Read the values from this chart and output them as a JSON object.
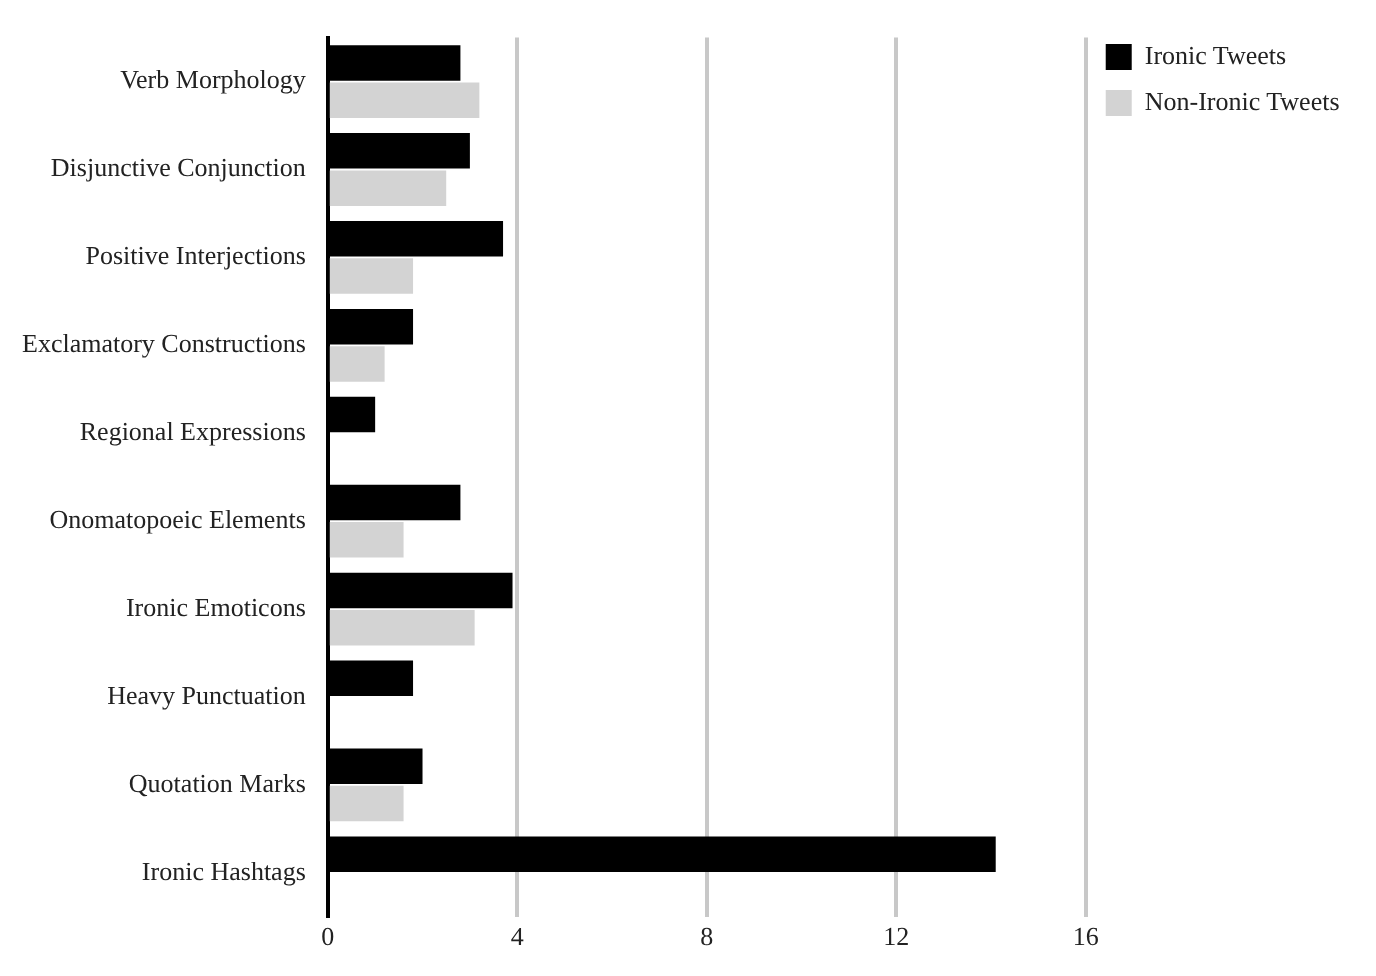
{
  "chart_data": {
    "type": "bar",
    "orientation": "horizontal",
    "categories": [
      "Verb Morphology",
      "Disjunctive Conjunction",
      "Positive Interjections",
      "Exclamatory Constructions",
      "Regional Expressions",
      "Onomatopoeic Elements",
      "Ironic Emoticons",
      "Heavy Punctuation",
      "Quotation Marks",
      "Ironic Hashtags"
    ],
    "series": [
      {
        "name": "Ironic Tweets",
        "color": "#000000",
        "values": [
          2.8,
          3.0,
          3.7,
          1.8,
          1.0,
          2.8,
          3.9,
          1.8,
          2.0,
          14.1
        ]
      },
      {
        "name": "Non-Ironic Tweets",
        "color": "#d3d3d3",
        "values": [
          3.2,
          2.5,
          1.8,
          1.2,
          0,
          1.6,
          3.1,
          0,
          1.6,
          0
        ]
      }
    ],
    "xlim": [
      0,
      16
    ],
    "xticks": [
      0,
      4,
      8,
      12,
      16
    ],
    "grid": "x",
    "legend": "top right"
  }
}
